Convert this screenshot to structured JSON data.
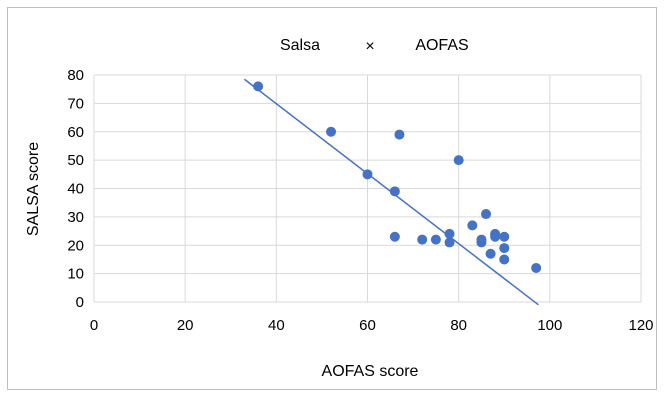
{
  "chart_data": {
    "type": "scatter",
    "title_left": "Salsa",
    "title_mid": "×",
    "title_right": "AOFAS",
    "xlabel": "AOFAS score",
    "ylabel": "SALSA score",
    "xlim": [
      0,
      120
    ],
    "ylim": [
      0,
      80
    ],
    "x_ticks": [
      0,
      20,
      40,
      60,
      80,
      100,
      120
    ],
    "y_ticks": [
      0,
      10,
      20,
      30,
      40,
      50,
      60,
      70,
      80
    ],
    "grid": true,
    "legend": "none",
    "point_color": "#4472c4",
    "trendline_color": "#4472c4",
    "trendline": {
      "x": [
        33,
        97.5
      ],
      "y": [
        78.5,
        -1
      ]
    },
    "points": [
      {
        "x": 36,
        "y": 76
      },
      {
        "x": 52,
        "y": 60
      },
      {
        "x": 60,
        "y": 45
      },
      {
        "x": 66,
        "y": 39
      },
      {
        "x": 66,
        "y": 23
      },
      {
        "x": 67,
        "y": 59
      },
      {
        "x": 72,
        "y": 22
      },
      {
        "x": 75,
        "y": 22
      },
      {
        "x": 78,
        "y": 24
      },
      {
        "x": 78,
        "y": 21
      },
      {
        "x": 80,
        "y": 50
      },
      {
        "x": 83,
        "y": 27
      },
      {
        "x": 85,
        "y": 22
      },
      {
        "x": 85,
        "y": 21
      },
      {
        "x": 86,
        "y": 31
      },
      {
        "x": 87,
        "y": 17
      },
      {
        "x": 88,
        "y": 24
      },
      {
        "x": 88,
        "y": 23
      },
      {
        "x": 90,
        "y": 23
      },
      {
        "x": 90,
        "y": 19
      },
      {
        "x": 90,
        "y": 15
      },
      {
        "x": 97,
        "y": 12
      }
    ]
  }
}
